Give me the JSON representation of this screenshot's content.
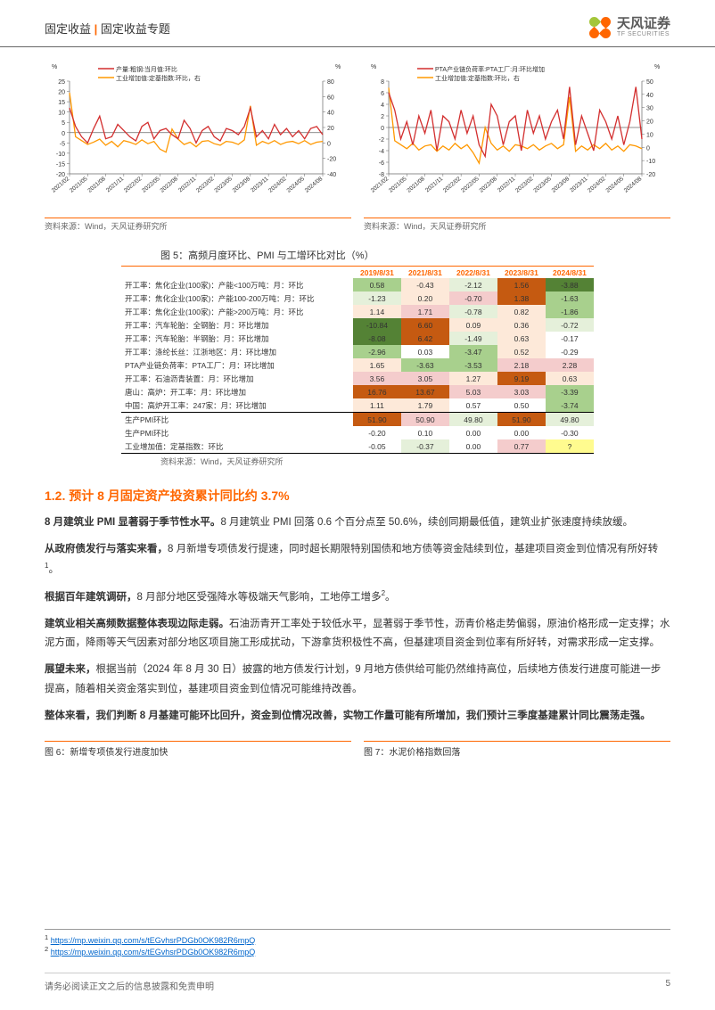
{
  "header": {
    "category": "固定收益",
    "topic": "固定收益专题",
    "logo_cn": "天风证券",
    "logo_en": "TF SECURITIES"
  },
  "chart_left": {
    "legend": [
      "产量:粗钢:当月值:环比",
      "工业增加值:定基指数:环比，右"
    ],
    "legend_colors": [
      "#d32f2f",
      "#ff9800"
    ],
    "y_left": {
      "min": -20,
      "max": 25,
      "step": 5,
      "unit": "%"
    },
    "y_right": {
      "min": -40,
      "max": 80,
      "step": 20,
      "unit": "%"
    },
    "x_labels": [
      "2021/02",
      "2021/05",
      "2021/08",
      "2021/11",
      "2022/02",
      "2022/05",
      "2022/08",
      "2022/11",
      "2023/02",
      "2023/05",
      "2023/08",
      "2023/11",
      "2024/02",
      "2024/05",
      "2024/08"
    ],
    "series_red": [
      12,
      3,
      -2,
      -5,
      2,
      8,
      -3,
      -2,
      4,
      1,
      -2,
      -4,
      3,
      5,
      -3,
      1,
      2,
      -1,
      -3,
      6,
      2,
      -5,
      1,
      3,
      -2,
      -4,
      2,
      1,
      -1,
      3,
      12,
      -2,
      1,
      -3,
      4,
      -1,
      2,
      -2,
      1,
      -3,
      2,
      3,
      -1
    ],
    "series_orange": [
      65,
      8,
      3,
      -2,
      1,
      5,
      -3,
      2,
      -5,
      3,
      1,
      -2,
      4,
      -1,
      2,
      -8,
      -12,
      18,
      5,
      -2,
      1,
      -5,
      2,
      3,
      -1,
      -3,
      2,
      1,
      -2,
      4,
      48,
      -3,
      2,
      -1,
      3,
      -2,
      1,
      2,
      -1,
      3,
      -2,
      1,
      2
    ],
    "background": "#ffffff",
    "grid_color": "#e0e0e0",
    "source": "资料来源：Wind，天风证券研究所"
  },
  "chart_right": {
    "legend": [
      "PTA产业链负荷率:PTA工厂:月:环比增加",
      "工业增加值:定基指数:环比，右"
    ],
    "legend_colors": [
      "#d32f2f",
      "#ff9800"
    ],
    "y_left": {
      "min": -8,
      "max": 8,
      "step": 2,
      "unit": "%"
    },
    "y_right": {
      "min": -20,
      "max": 50,
      "step": 10,
      "unit": "%"
    },
    "x_labels": [
      "2021/02",
      "2021/05",
      "2021/08",
      "2021/11",
      "2022/02",
      "2022/05",
      "2022/08",
      "2022/11",
      "2023/02",
      "2023/05",
      "2023/08",
      "2023/11",
      "2024/02",
      "2024/05",
      "2024/08"
    ],
    "series_red": [
      6,
      3,
      -2,
      1,
      -3,
      2,
      -1,
      3,
      -4,
      2,
      1,
      -2,
      3,
      -1,
      2,
      -3,
      -5,
      4,
      2,
      -3,
      1,
      2,
      -4,
      3,
      -1,
      2,
      -2,
      1,
      3,
      -2,
      7,
      -3,
      2,
      -1,
      -4,
      3,
      1,
      -2,
      2,
      -3,
      1,
      7,
      -2
    ],
    "series_orange": [
      45,
      5,
      2,
      -1,
      3,
      -2,
      1,
      2,
      -3,
      1,
      -2,
      3,
      -1,
      2,
      -4,
      -12,
      15,
      3,
      -2,
      1,
      -3,
      2,
      1,
      -1,
      2,
      -2,
      1,
      3,
      -1,
      2,
      38,
      -3,
      1,
      -2,
      2,
      -1,
      3,
      -2,
      1,
      -3,
      2,
      1,
      -1
    ],
    "background": "#ffffff",
    "grid_color": "#e0e0e0",
    "source": "资料来源：Wind，天风证券研究所"
  },
  "table": {
    "title": "图 5：高频月度环比、PMI 与工增环比对比（%）",
    "columns": [
      "",
      "2019/8/31",
      "2021/8/31",
      "2022/8/31",
      "2023/8/31",
      "2024/8/31"
    ],
    "rows": [
      {
        "label": "开工率：焦化企业(100家)：产能<100万吨：月：环比",
        "vals": [
          [
            "0.58",
            "#a8d08d"
          ],
          [
            "-0.43",
            "#fde9d9"
          ],
          [
            "-2.12",
            "#e5f0da"
          ],
          [
            "1.56",
            "#c55a11"
          ],
          [
            "-3.88",
            "#548235"
          ]
        ]
      },
      {
        "label": "开工率：焦化企业(100家)：产能100-200万吨：月：环比",
        "vals": [
          [
            "-1.23",
            "#e5f0da"
          ],
          [
            "0.20",
            "#fde9d9"
          ],
          [
            "-0.70",
            "#f4cccc"
          ],
          [
            "1.38",
            "#c55a11"
          ],
          [
            "-1.63",
            "#a8d08d"
          ]
        ]
      },
      {
        "label": "开工率：焦化企业(100家)：产能>200万吨：月：环比",
        "vals": [
          [
            "1.14",
            "#fde9d9"
          ],
          [
            "1.71",
            "#f4cccc"
          ],
          [
            "-0.78",
            "#e5f0da"
          ],
          [
            "0.82",
            "#fde9d9"
          ],
          [
            "-1.86",
            "#a8d08d"
          ]
        ]
      },
      {
        "label": "开工率：汽车轮胎：全钢胎：月：环比增加",
        "vals": [
          [
            "-10.84",
            "#548235"
          ],
          [
            "6.60",
            "#c55a11"
          ],
          [
            "0.09",
            "#fde9d9"
          ],
          [
            "0.36",
            "#fde9d9"
          ],
          [
            "-0.72",
            "#e5f0da"
          ]
        ]
      },
      {
        "label": "开工率：汽车轮胎：半钢胎：月：环比增加",
        "vals": [
          [
            "-8.08",
            "#548235"
          ],
          [
            "6.42",
            "#c55a11"
          ],
          [
            "-1.49",
            "#e5f0da"
          ],
          [
            "0.63",
            "#fde9d9"
          ],
          [
            "-0.17",
            "#fff"
          ]
        ]
      },
      {
        "label": "开工率：涤纶长丝：江浙地区：月：环比增加",
        "vals": [
          [
            "-2.96",
            "#a8d08d"
          ],
          [
            "0.03",
            "#fff"
          ],
          [
            "-3.47",
            "#a8d08d"
          ],
          [
            "0.52",
            "#fde9d9"
          ],
          [
            "-0.29",
            "#fff"
          ]
        ]
      },
      {
        "label": "PTA产业链负荷率：PTA工厂：月：环比增加",
        "vals": [
          [
            "1.65",
            "#fde9d9"
          ],
          [
            "-3.63",
            "#a8d08d"
          ],
          [
            "-3.53",
            "#a8d08d"
          ],
          [
            "2.18",
            "#f4cccc"
          ],
          [
            "2.28",
            "#f4cccc"
          ]
        ]
      },
      {
        "label": "开工率：石油沥青装置：月：环比增加",
        "vals": [
          [
            "3.56",
            "#f4cccc"
          ],
          [
            "3.05",
            "#f4cccc"
          ],
          [
            "1.27",
            "#fde9d9"
          ],
          [
            "9.19",
            "#c55a11"
          ],
          [
            "0.63",
            "#fde9d9"
          ]
        ]
      },
      {
        "label": "唐山：高炉：开工率：月：环比增加",
        "vals": [
          [
            "16.76",
            "#c55a11"
          ],
          [
            "13.67",
            "#c55a11"
          ],
          [
            "5.03",
            "#f4cccc"
          ],
          [
            "3.03",
            "#f4cccc"
          ],
          [
            "-3.39",
            "#a8d08d"
          ]
        ]
      },
      {
        "label": "中国：高炉开工率：247家：月：环比增加",
        "vals": [
          [
            "1.11",
            "#fde9d9"
          ],
          [
            "1.79",
            "#fde9d9"
          ],
          [
            "0.57",
            "#fff"
          ],
          [
            "0.50",
            "#fff"
          ],
          [
            "-3.74",
            "#a8d08d"
          ]
        ]
      },
      {
        "label": "生产PMI环比",
        "vals": [
          [
            "51.90",
            "#c55a11"
          ],
          [
            "50.90",
            "#f4cccc"
          ],
          [
            "49.80",
            "#e5f0da"
          ],
          [
            "51.90",
            "#c55a11"
          ],
          [
            "49.80",
            "#e5f0da"
          ]
        ],
        "hl": true
      },
      {
        "label": "生产PMI环比",
        "vals": [
          [
            "-0.20",
            "#fff"
          ],
          [
            "0.10",
            "#fff"
          ],
          [
            "0.00",
            "#fff"
          ],
          [
            "0.00",
            "#fff"
          ],
          [
            "-0.30",
            "#fff"
          ]
        ]
      },
      {
        "label": "工业增加值：定基指数：环比",
        "vals": [
          [
            "-0.05",
            "#fff"
          ],
          [
            "-0.37",
            "#e5f0da"
          ],
          [
            "0.00",
            "#fff"
          ],
          [
            "0.77",
            "#f4cccc"
          ],
          [
            "?",
            "#fffb8f"
          ]
        ],
        "last": true
      }
    ],
    "source": "资料来源：Wind，天风证券研究所"
  },
  "section": {
    "title": "1.2. 预计 8 月固定资产投资累计同比约 3.7%",
    "paragraphs": [
      "<b>8 月建筑业 PMI 显著弱于季节性水平。</b>8 月建筑业 PMI 回落 0.6 个百分点至 50.6%，续创同期最低值，建筑业扩张速度持续放缓。",
      "<b>从政府债发行与落实来看，</b>8 月新增专项债发行提速，同时超长期限特别国债和地方债等资金陆续到位，基建项目资金到位情况有所好转<sup>1</sup>。",
      "<b>根据百年建筑调研，</b>8 月部分地区受强降水等极端天气影响，工地停工增多<sup>2</sup>。",
      "<b>建筑业相关高频数据整体表现边际走弱。</b>石油沥青开工率处于较低水平，显著弱于季节性，沥青价格走势偏弱，原油价格形成一定支撑；水泥方面，降雨等天气因素对部分地区项目施工形成扰动，下游拿货积极性不高，但基建项目资金到位率有所好转，对需求形成一定支撑。",
      "<b>展望未来，</b>根据当前（2024 年 8 月 30 日）披露的地方债发行计划，9 月地方债供给可能仍然维持高位，后续地方债发行进度可能进一步提高，随着相关资金落实到位，基建项目资金到位情况可能维持改善。",
      "<b>整体来看，我们判断 8 月基建可能环比回升，资金到位情况改善，实物工作量可能有所增加，我们预计三季度基建累计同比震荡走强。</b>"
    ]
  },
  "fig_labels": {
    "left": "图 6：新增专项债发行进度加快",
    "right": "图 7：水泥价格指数回落"
  },
  "footnotes": [
    {
      "num": "1",
      "url": "https://mp.weixin.qq.com/s/tEGvhsrPDGb0OK982R6mpQ"
    },
    {
      "num": "2",
      "url": "https://mp.weixin.qq.com/s/tEGvhsrPDGb0OK982R6mpQ"
    }
  ],
  "footer": {
    "disclaimer": "请务必阅读正文之后的信息披露和免责申明",
    "page": "5"
  }
}
